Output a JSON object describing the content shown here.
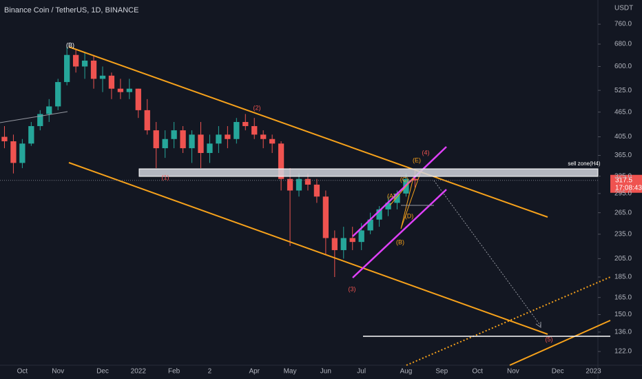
{
  "chart_data": {
    "type": "candlestick",
    "title": "Binance Coin / TetherUS, 1D, BINANCE",
    "currency": "USDT",
    "countdown": "17:08:43",
    "log_scale": true,
    "grid": false,
    "up_color": "#26a69a",
    "down_color": "#ef5350",
    "ylim": [
      113,
      870
    ],
    "yticks": [
      {
        "value": 760,
        "label": "760.0"
      },
      {
        "value": 680,
        "label": "680.0"
      },
      {
        "value": 600,
        "label": "600.0"
      },
      {
        "value": 525,
        "label": "525.0"
      },
      {
        "value": 465,
        "label": "465.0"
      },
      {
        "value": 405,
        "label": "405.0"
      },
      {
        "value": 365,
        "label": "365.0"
      },
      {
        "value": 325,
        "label": "325.0"
      },
      {
        "value": 295,
        "label": "295.0"
      },
      {
        "value": 265,
        "label": "265.0"
      },
      {
        "value": 235,
        "label": "235.0"
      },
      {
        "value": 205,
        "label": "205.0"
      },
      {
        "value": 185,
        "label": "185.0"
      },
      {
        "value": 165,
        "label": "165.0"
      },
      {
        "value": 150,
        "label": "150.0"
      },
      {
        "value": 136,
        "label": "136.0"
      },
      {
        "value": 122,
        "label": "122.0"
      }
    ],
    "categories": [
      null,
      null,
      "Oct",
      null,
      null,
      null,
      "Nov",
      null,
      null,
      null,
      null,
      "Dec",
      null,
      null,
      null,
      "2022",
      null,
      null,
      null,
      "Feb",
      null,
      null,
      null,
      "2",
      null,
      null,
      null,
      null,
      "Apr",
      null,
      null,
      null,
      "May",
      null,
      null,
      null,
      "Jun",
      null,
      null,
      null,
      "Jul",
      null,
      null,
      null,
      null,
      "Aug",
      null,
      null,
      null,
      "Sep",
      null,
      null,
      null,
      "Oct",
      null,
      null,
      null,
      "Nov",
      null,
      null,
      null,
      null,
      "Dec",
      null,
      null,
      null,
      "2023"
    ],
    "open": [
      405,
      395,
      350,
      390,
      430,
      460,
      480,
      550,
      640,
      600,
      620,
      560,
      570,
      530,
      520,
      530,
      470,
      420,
      380,
      400,
      420,
      380,
      410,
      370,
      390,
      410,
      400,
      440,
      430,
      410,
      400,
      390,
      320,
      300,
      320,
      310,
      290,
      230,
      215,
      230,
      225,
      240,
      255,
      270,
      280,
      295,
      320,
      null,
      null,
      null,
      null,
      null,
      null,
      null,
      null,
      null,
      null,
      null,
      null,
      null,
      null,
      null,
      null,
      null,
      null,
      null,
      null
    ],
    "high": [
      430,
      410,
      400,
      440,
      470,
      500,
      560,
      670,
      660,
      650,
      640,
      600,
      580,
      560,
      560,
      530,
      500,
      440,
      420,
      440,
      430,
      420,
      440,
      410,
      430,
      430,
      450,
      460,
      450,
      420,
      410,
      395,
      340,
      330,
      330,
      320,
      300,
      240,
      245,
      245,
      250,
      265,
      275,
      290,
      300,
      330,
      335,
      null,
      null,
      null,
      null,
      null,
      null,
      null,
      null,
      null,
      null,
      null,
      null,
      null,
      null,
      null,
      null,
      null,
      null,
      null,
      null
    ],
    "low": [
      380,
      330,
      340,
      385,
      420,
      440,
      470,
      540,
      580,
      560,
      530,
      520,
      500,
      500,
      500,
      450,
      410,
      340,
      360,
      380,
      370,
      350,
      340,
      350,
      370,
      380,
      390,
      420,
      400,
      380,
      370,
      300,
      220,
      290,
      300,
      280,
      210,
      185,
      205,
      215,
      215,
      235,
      245,
      260,
      270,
      290,
      305,
      null,
      null,
      null,
      null,
      null,
      null,
      null,
      null,
      null,
      null,
      null,
      null,
      null,
      null,
      null,
      null,
      null,
      null,
      null,
      null
    ],
    "close": [
      395,
      350,
      390,
      430,
      460,
      480,
      550,
      640,
      600,
      620,
      560,
      570,
      530,
      520,
      530,
      470,
      420,
      380,
      400,
      420,
      380,
      410,
      370,
      390,
      410,
      400,
      440,
      430,
      410,
      400,
      390,
      320,
      300,
      320,
      310,
      290,
      230,
      215,
      230,
      225,
      240,
      255,
      270,
      280,
      295,
      320,
      317.5,
      null,
      null,
      null,
      null,
      null,
      null,
      null,
      null,
      null,
      null,
      null,
      null,
      null,
      null,
      null,
      null,
      null,
      null,
      null,
      null
    ],
    "annotations": [
      "(B)",
      "(1)",
      "(2)",
      "(3)",
      "(4)",
      "(5)",
      "(A)",
      "(B)",
      "(C)",
      "(D)",
      "(E)",
      "sell zone(H4)"
    ]
  }
}
